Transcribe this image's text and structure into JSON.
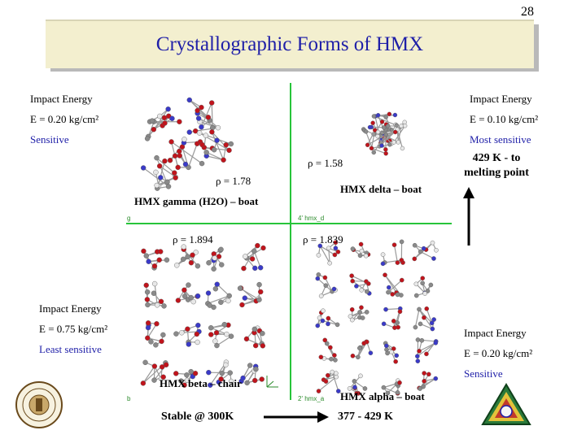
{
  "slide": {
    "page_number": "28",
    "title": "Crystallographic Forms of HMX"
  },
  "panels": {
    "gamma": {
      "caption": "HMX gamma (H2O) – boat",
      "density": "ρ = 1.78",
      "impact_label": "Impact Energy",
      "impact_value": "E = 0.20  kg/cm²",
      "sensitivity": "Sensitive",
      "axis_tag": "g"
    },
    "delta": {
      "caption": "HMX delta – boat",
      "density": "ρ = 1.58",
      "impact_label": "Impact Energy",
      "impact_value": "E = 0.10  kg/cm²",
      "sensitivity": "Most sensitive",
      "axis_tag": "4' hmx_d"
    },
    "beta": {
      "caption": "HMX beta – chair",
      "density": "ρ = 1.894",
      "impact_label": "Impact Energy",
      "impact_value": "E = 0.75 kg/cm²",
      "sensitivity": "Least sensitive",
      "axis_tag": "b"
    },
    "alpha": {
      "caption": "HMX alpha – boat",
      "density": "ρ = 1.839",
      "impact_label": "Impact Energy",
      "impact_value": "E = 0.20  kg/cm²",
      "sensitivity": "Sensitive",
      "axis_tag": "2' hmx_a"
    }
  },
  "melting_note": {
    "line1": "429 K - to",
    "line2": "melting point"
  },
  "temperature_bar": {
    "left": "Stable @ 300K",
    "right": "377 - 429 K"
  },
  "colors": {
    "title_text": "#1f1fa8",
    "title_bg": "#f3efcf",
    "divider": "#27c43a",
    "oxygen_atom": "#c0141c",
    "nitrogen_atom": "#3a3ac8",
    "carbon_atom": "#8a8a8a",
    "hydrogen_atom": "#e8e8e8"
  },
  "logos": {
    "left": "institution-seal-icon",
    "right": "triangle-emblem-icon"
  }
}
